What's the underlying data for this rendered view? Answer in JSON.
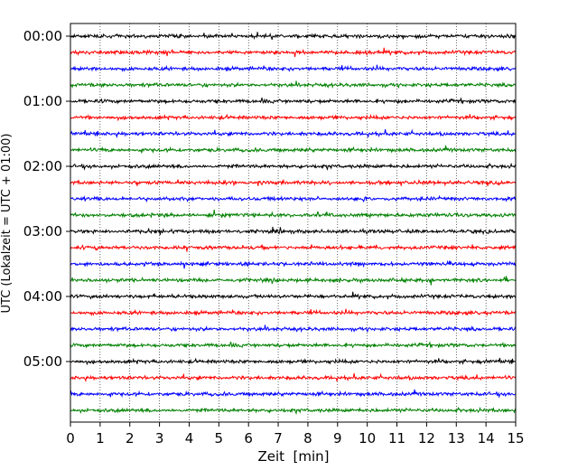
{
  "chart_data": {
    "type": "line",
    "title": "",
    "xlabel": "Zeit  [min]",
    "ylabel": "UTC (Lokalzeit = UTC + 01:00)",
    "xlim": [
      0,
      15
    ],
    "x_ticks": [
      "0",
      "1",
      "2",
      "3",
      "4",
      "5",
      "6",
      "7",
      "8",
      "9",
      "10",
      "11",
      "12",
      "13",
      "14",
      "15"
    ],
    "y_tick_labels": [
      "00:00",
      "01:00",
      "02:00",
      "03:00",
      "04:00",
      "05:00"
    ],
    "grid": "vertical dotted at each minute",
    "legend": "none",
    "trace_interval_minutes": 15,
    "trace_count": 24,
    "trace_colors": [
      "#000000",
      "#ff0000",
      "#0000ff",
      "#008000"
    ],
    "traces": [
      {
        "start": "00:00",
        "color": "#000000"
      },
      {
        "start": "00:15",
        "color": "#ff0000"
      },
      {
        "start": "00:30",
        "color": "#0000ff"
      },
      {
        "start": "00:45",
        "color": "#008000"
      },
      {
        "start": "01:00",
        "color": "#000000"
      },
      {
        "start": "01:15",
        "color": "#ff0000"
      },
      {
        "start": "01:30",
        "color": "#0000ff"
      },
      {
        "start": "01:45",
        "color": "#008000"
      },
      {
        "start": "02:00",
        "color": "#000000"
      },
      {
        "start": "02:15",
        "color": "#ff0000"
      },
      {
        "start": "02:30",
        "color": "#0000ff"
      },
      {
        "start": "02:45",
        "color": "#008000"
      },
      {
        "start": "03:00",
        "color": "#000000"
      },
      {
        "start": "03:15",
        "color": "#ff0000"
      },
      {
        "start": "03:30",
        "color": "#0000ff"
      },
      {
        "start": "03:45",
        "color": "#008000"
      },
      {
        "start": "04:00",
        "color": "#000000"
      },
      {
        "start": "04:15",
        "color": "#ff0000"
      },
      {
        "start": "04:30",
        "color": "#0000ff"
      },
      {
        "start": "04:45",
        "color": "#008000"
      },
      {
        "start": "05:00",
        "color": "#000000"
      },
      {
        "start": "05:15",
        "color": "#ff0000"
      },
      {
        "start": "05:30",
        "color": "#0000ff"
      },
      {
        "start": "05:45",
        "color": "#008000"
      }
    ]
  }
}
